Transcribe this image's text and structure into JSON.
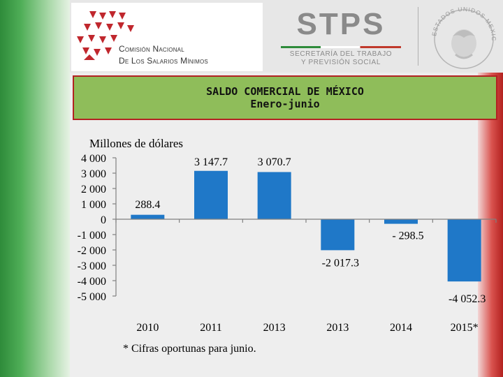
{
  "header": {
    "org_name_line1": "Comisión Nacional",
    "org_name_line2": "De Los Salarios Mínimos",
    "stps_title": "STPS",
    "stps_sub1": "SECRETARÍA DEL TRABAJO",
    "stps_sub2": "Y PREVISIÓN SOCIAL",
    "seal_text": "ESTADOS UNIDOS MEXICANOS"
  },
  "colors": {
    "bar": "#1f78c8",
    "title_bg": "#8fbd5a",
    "title_border": "#b22222"
  },
  "chart_data": {
    "type": "bar",
    "title": "SALDO COMERCIAL DE MÉXICO",
    "subtitle": "Enero-junio",
    "ylabel": "Millones de dólares",
    "ylim": [
      -5000,
      4000
    ],
    "yticks": [
      4000,
      3000,
      2000,
      1000,
      0,
      -1000,
      -2000,
      -3000,
      -4000,
      -5000
    ],
    "ytick_labels": [
      "4 000",
      "3 000",
      "2 000",
      "1 000",
      "0",
      "-1 000",
      "-2 000",
      "-3 000",
      "-4 000",
      "-5 000"
    ],
    "categories": [
      "2010",
      "2011",
      "2013",
      "2013",
      "2014",
      "2015*"
    ],
    "values": [
      288.4,
      3147.7,
      3070.7,
      -2017.3,
      -298.5,
      -4052.3
    ],
    "data_labels": [
      "288.4",
      "3 147.7",
      "3 070.7",
      "-2 017.3",
      "- 298.5",
      "-4 052.3"
    ],
    "footnote": "* Cifras oportunas para junio.",
    "grid": false,
    "legend": "none"
  }
}
